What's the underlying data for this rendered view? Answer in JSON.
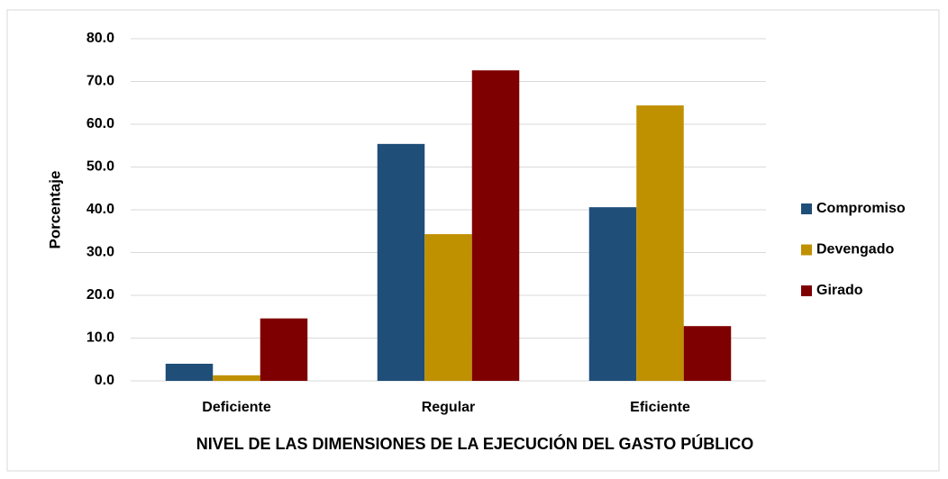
{
  "chart_data": {
    "type": "bar",
    "x_label": "NIVEL DE LAS DIMENSIONES DE LA EJECUCIÓN DEL GASTO PÚBLICO",
    "y_label": "Porcentaje",
    "categories": [
      "Deficiente",
      "Regular",
      "Eficiente"
    ],
    "series": [
      {
        "name": "Compromiso",
        "color": "#1f4e79",
        "values": [
          4.0,
          55.4,
          40.6
        ]
      },
      {
        "name": "Devengado",
        "color": "#bf9000",
        "values": [
          1.3,
          34.3,
          64.4
        ]
      },
      {
        "name": "Girado",
        "color": "#7f0000",
        "values": [
          14.6,
          72.6,
          12.8
        ]
      }
    ],
    "ylim": [
      0,
      80
    ],
    "yticks": [
      {
        "value": 0,
        "label": "0.0"
      },
      {
        "value": 10,
        "label": "10.0"
      },
      {
        "value": 20,
        "label": "20.0"
      },
      {
        "value": 30,
        "label": "30.0"
      },
      {
        "value": 40,
        "label": "40.0"
      },
      {
        "value": 50,
        "label": "50.0"
      },
      {
        "value": 60,
        "label": "60.0"
      },
      {
        "value": 70,
        "label": "70.0"
      },
      {
        "value": 80,
        "label": "80.0"
      }
    ],
    "grid": true,
    "legend": "right"
  }
}
